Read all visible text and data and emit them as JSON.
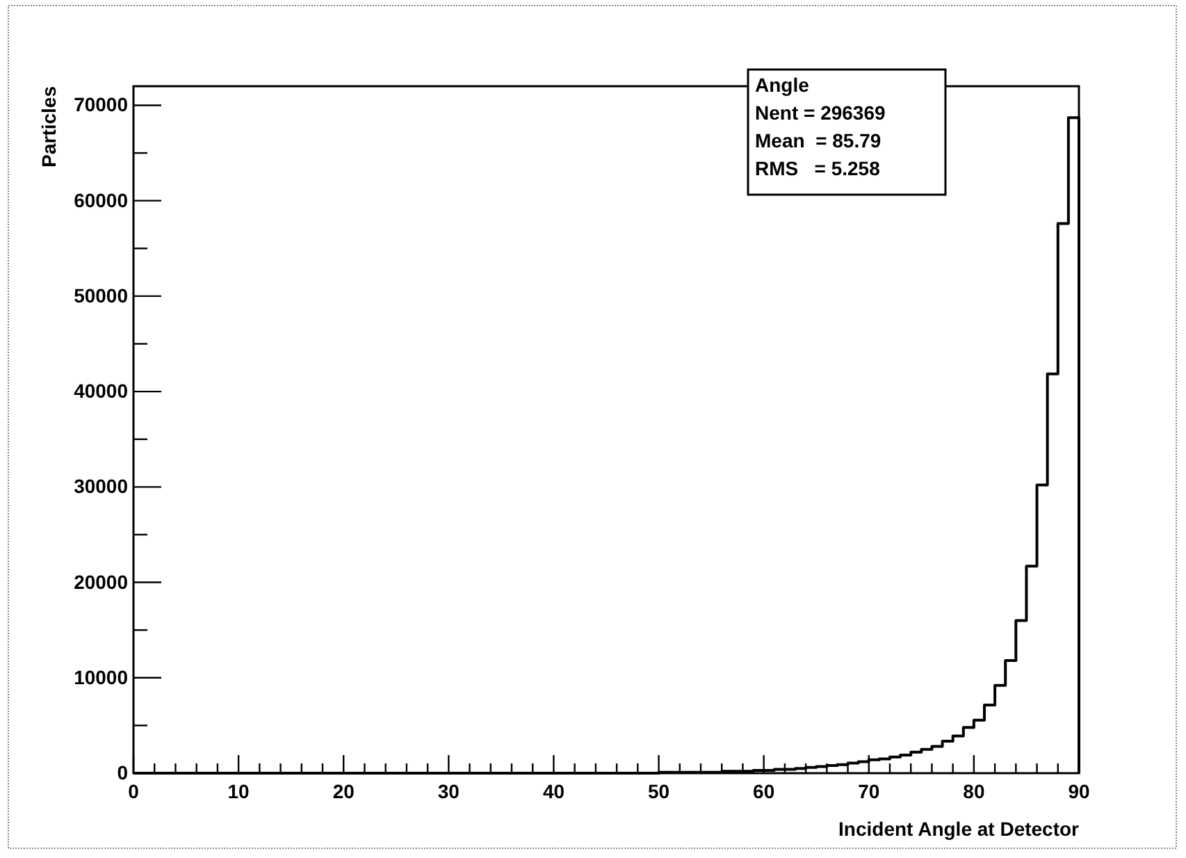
{
  "chart_data": {
    "type": "histogram",
    "xlabel": "Incident Angle at Detector",
    "ylabel": "Particles",
    "bins": [
      0,
      1,
      2,
      3,
      4,
      5,
      6,
      7,
      8,
      9,
      10,
      11,
      12,
      13,
      14,
      15,
      16,
      17,
      18,
      19,
      20,
      21,
      22,
      23,
      24,
      25,
      26,
      27,
      28,
      29,
      30,
      31,
      32,
      33,
      34,
      35,
      36,
      37,
      38,
      39,
      40,
      41,
      42,
      43,
      44,
      45,
      46,
      47,
      48,
      49,
      50,
      51,
      52,
      53,
      54,
      55,
      56,
      57,
      58,
      59,
      60,
      61,
      62,
      63,
      64,
      65,
      66,
      67,
      68,
      69,
      70,
      71,
      72,
      73,
      74,
      75,
      76,
      77,
      78,
      79,
      80,
      81,
      82,
      83,
      84,
      85,
      86,
      87,
      88,
      89,
      90
    ],
    "values": [
      0,
      0,
      0,
      0,
      0,
      0,
      0,
      0,
      0,
      0,
      0,
      0,
      0,
      0,
      0,
      0,
      0,
      0,
      0,
      0,
      0,
      0,
      0,
      0,
      0,
      0,
      0,
      0,
      0,
      0,
      0,
      0,
      0,
      0,
      0,
      0,
      0,
      0,
      0,
      0,
      0,
      0,
      0,
      0,
      0,
      0,
      0,
      0,
      0,
      0,
      100,
      100,
      100,
      100,
      100,
      100,
      200,
      200,
      200,
      300,
      300,
      400,
      400,
      500,
      600,
      700,
      800,
      900,
      1050,
      1200,
      1400,
      1500,
      1700,
      1900,
      2200,
      2500,
      2800,
      3350,
      3900,
      4800,
      5550,
      7150,
      9200,
      11800,
      16000,
      21700,
      30200,
      41850,
      57600,
      68700
    ],
    "color": "#000000",
    "xlim": [
      0,
      90
    ],
    "xticks": [
      0,
      {
        "value": 2,
        "label": null
      },
      {
        "value": 4,
        "label": null
      },
      {
        "value": 6,
        "label": null
      },
      {
        "value": 8,
        "label": null
      },
      10,
      {
        "value": 12,
        "label": null
      },
      {
        "value": 14,
        "label": null
      },
      {
        "value": 16,
        "label": null
      },
      {
        "value": 18,
        "label": null
      },
      20,
      {
        "value": 22,
        "label": null
      },
      {
        "value": 24,
        "label": null
      },
      {
        "value": 26,
        "label": null
      },
      {
        "value": 28,
        "label": null
      },
      30,
      {
        "value": 32,
        "label": null
      },
      {
        "value": 34,
        "label": null
      },
      {
        "value": 36,
        "label": null
      },
      {
        "value": 38,
        "label": null
      },
      40,
      {
        "value": 42,
        "label": null
      },
      {
        "value": 44,
        "label": null
      },
      {
        "value": 46,
        "label": null
      },
      {
        "value": 48,
        "label": null
      },
      50,
      {
        "value": 52,
        "label": null
      },
      {
        "value": 54,
        "label": null
      },
      {
        "value": 56,
        "label": null
      },
      {
        "value": 58,
        "label": null
      },
      60,
      {
        "value": 62,
        "label": null
      },
      {
        "value": 64,
        "label": null
      },
      {
        "value": 66,
        "label": null
      },
      {
        "value": 68,
        "label": null
      },
      70,
      {
        "value": 72,
        "label": null
      },
      {
        "value": 74,
        "label": null
      },
      {
        "value": 76,
        "label": null
      },
      {
        "value": 78,
        "label": null
      },
      80,
      {
        "value": 82,
        "label": null
      },
      {
        "value": 84,
        "label": null
      },
      {
        "value": 86,
        "label": null
      },
      {
        "value": 88,
        "label": null
      },
      90
    ],
    "ylim": [
      0,
      72000
    ],
    "yticks": [
      0,
      {
        "value": 5000,
        "label": null
      },
      10000,
      {
        "value": 15000,
        "label": null
      },
      20000,
      {
        "value": 25000,
        "label": null
      },
      30000,
      {
        "value": 35000,
        "label": null
      },
      40000,
      {
        "value": 45000,
        "label": null
      },
      50000,
      {
        "value": 55000,
        "label": null
      },
      60000,
      {
        "value": 65000,
        "label": null
      },
      70000
    ],
    "annotations": [
      "Angle",
      "Nent = 296369",
      "Mean  = 85.79",
      "RMS   = 5.258"
    ]
  }
}
